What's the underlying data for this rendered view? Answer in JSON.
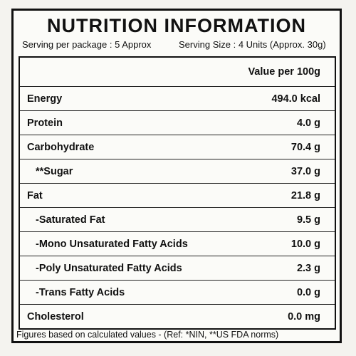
{
  "header": {
    "title": "NUTRITION INFORMATION",
    "serving_per_package": "Serving per package : 5 Approx",
    "serving_size": "Serving Size : 4 Units (Approx. 30g)"
  },
  "table": {
    "column_header": "Value per 100g",
    "rows": [
      [
        "Energy",
        "494.0 kcal"
      ],
      [
        "Protein",
        "4.0 g"
      ],
      [
        "Carbohydrate",
        "70.4 g"
      ],
      [
        "**Sugar",
        "37.0 g"
      ],
      [
        "Fat",
        "21.8 g"
      ],
      [
        "-Saturated Fat",
        "9.5 g"
      ],
      [
        "-Mono Unsaturated Fatty Acids",
        "10.0 g"
      ],
      [
        "-Poly Unsaturated Fatty Acids",
        "2.3 g"
      ],
      [
        "-Trans Fatty Acids",
        "0.0 g"
      ],
      [
        "Cholesterol",
        "0.0 mg"
      ]
    ]
  },
  "footer": "Figures based on calculated values - (Ref: *NIN, **US FDA norms)"
}
